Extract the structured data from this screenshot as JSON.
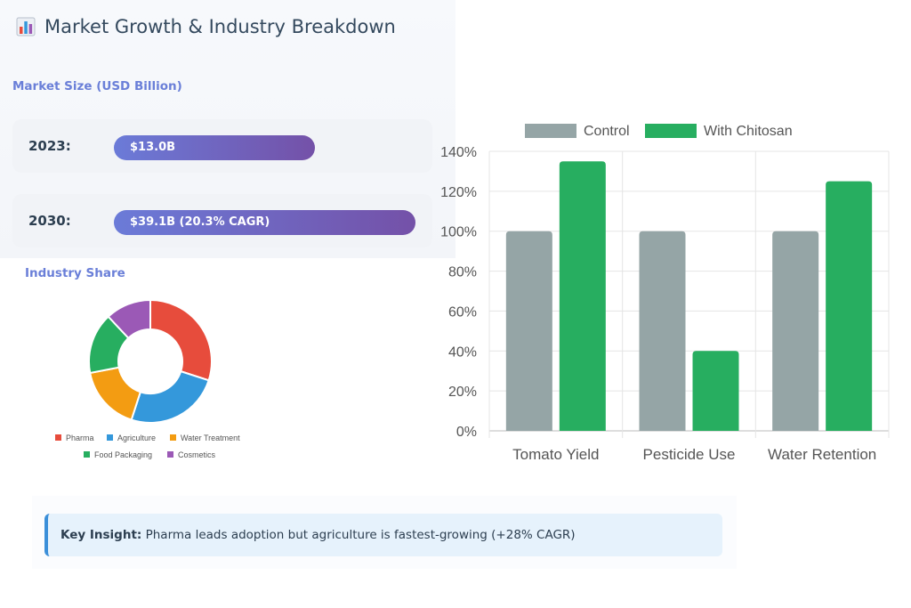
{
  "header": {
    "title": "Market Growth & Industry Breakdown",
    "icon": "bar-chart-icon"
  },
  "market": {
    "label": "Market Size (USD Billion)",
    "rows": [
      {
        "year": "2023:",
        "value_label": "$13.0B",
        "value": 13.0
      },
      {
        "year": "2030:",
        "value_label": "$39.1B (20.3% CAGR)",
        "value": 39.1
      }
    ],
    "bar_colors": [
      "#6b7bd8",
      "#7451a8"
    ]
  },
  "industry": {
    "label": "Industry Share"
  },
  "chart_data": [
    {
      "type": "pie",
      "title": "Industry Share",
      "categories": [
        "Pharma",
        "Agriculture",
        "Water Treatment",
        "Food Packaging",
        "Cosmetics"
      ],
      "values": [
        30,
        25,
        17,
        16,
        12
      ],
      "colors": [
        "#e74c3c",
        "#3498db",
        "#f39c12",
        "#27ae60",
        "#9b59b6"
      ],
      "legend": "bottom"
    },
    {
      "type": "bar",
      "title": "",
      "categories": [
        "Tomato Yield",
        "Pesticide Use",
        "Water Retention"
      ],
      "series": [
        {
          "name": "Control",
          "values": [
            100,
            100,
            100
          ],
          "color": "#95a5a6"
        },
        {
          "name": "With Chitosan",
          "values": [
            135,
            40,
            125
          ],
          "color": "#27ae60"
        }
      ],
      "ylim": [
        0,
        140
      ],
      "yticks": [
        "0%",
        "20%",
        "40%",
        "60%",
        "80%",
        "100%",
        "120%",
        "140%"
      ],
      "grid": true,
      "legend": "top"
    }
  ],
  "insight": {
    "label": "Key Insight:",
    "text": " Pharma leads adoption but agriculture is fastest-growing (+28% CAGR)",
    "accent": "#3b8fd9"
  }
}
